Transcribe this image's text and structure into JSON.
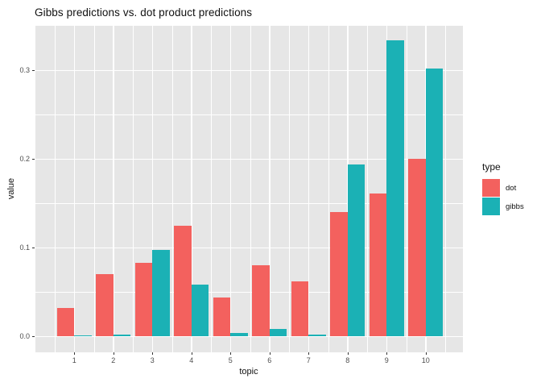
{
  "title": "Gibbs predictions vs. dot product predictions",
  "axes": {
    "x_label": "topic",
    "y_label": "value",
    "x_ticks": [
      "1",
      "2",
      "3",
      "4",
      "5",
      "6",
      "7",
      "8",
      "9",
      "10"
    ],
    "y_ticks": [
      "0.0",
      "0.1",
      "0.2",
      "0.3"
    ]
  },
  "legend": {
    "title": "type",
    "items": [
      {
        "label": "dot",
        "color": "#F3615E"
      },
      {
        "label": "gibbs",
        "color": "#1BB1B5"
      }
    ]
  },
  "colors": {
    "panel_background": "#E6E6E6",
    "gridline": "#FFFFFF",
    "tick_text": "#4D4D4D",
    "axis_text": "#111111",
    "dot": "#F3615E",
    "gibbs": "#1BB1B5"
  },
  "chart_data": {
    "type": "bar",
    "title": "Gibbs predictions vs. dot product predictions",
    "xlabel": "topic",
    "ylabel": "value",
    "categories": [
      1,
      2,
      3,
      4,
      5,
      6,
      7,
      8,
      9,
      10
    ],
    "series": [
      {
        "name": "dot",
        "color": "#F3615E",
        "values": [
          0.032,
          0.07,
          0.083,
          0.125,
          0.044,
          0.08,
          0.062,
          0.14,
          0.161,
          0.2
        ]
      },
      {
        "name": "gibbs",
        "color": "#1BB1B5",
        "values": [
          0.001,
          0.002,
          0.097,
          0.058,
          0.004,
          0.008,
          0.002,
          0.194,
          0.334,
          0.302
        ]
      }
    ],
    "ylim": [
      0,
      0.35
    ],
    "y_major_gridlines": [
      0.0,
      0.1,
      0.2,
      0.3
    ],
    "y_minor_gridlines": [
      0.05,
      0.15,
      0.25
    ],
    "grid": true,
    "legend_position": "right",
    "bar_layout": "dodged"
  }
}
